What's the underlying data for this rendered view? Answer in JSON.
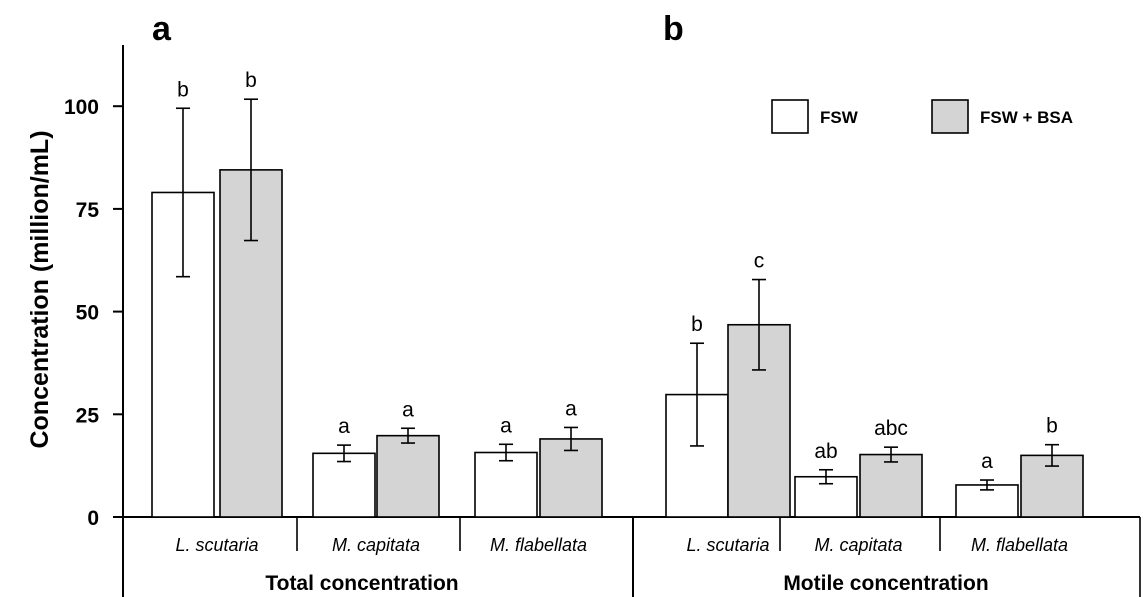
{
  "chart_data": {
    "type": "bar",
    "ylabel": "Concentration (million/mL)",
    "ylim": [
      0,
      110
    ],
    "yticks": [
      0,
      25,
      50,
      75,
      100
    ],
    "legend": {
      "placement": "top-right",
      "entries": [
        {
          "name": "FSW",
          "color": "#ffffff"
        },
        {
          "name": "FSW + BSA",
          "color": "#d4d4d4"
        }
      ]
    },
    "panels": [
      {
        "label": "a",
        "group_title": "Total concentration",
        "categories": [
          "L. scutaria",
          "M. capitata",
          "M. flabellata"
        ],
        "series": [
          {
            "name": "FSW",
            "values": [
              79,
              15.5,
              15.7
            ],
            "errors": [
              20.5,
              2,
              2
            ],
            "letters": [
              "b",
              "a",
              "a"
            ]
          },
          {
            "name": "FSW + BSA",
            "values": [
              84.5,
              19.8,
              19
            ],
            "errors": [
              17.2,
              1.8,
              2.8
            ],
            "letters": [
              "b",
              "a",
              "a"
            ]
          }
        ]
      },
      {
        "label": "b",
        "group_title": "Motile concentration",
        "categories": [
          "L. scutaria",
          "M. capitata",
          "M. flabellata"
        ],
        "series": [
          {
            "name": "FSW",
            "values": [
              29.8,
              9.8,
              7.8
            ],
            "errors": [
              12.5,
              1.7,
              1.2
            ],
            "letters": [
              "b",
              "ab",
              "a"
            ]
          },
          {
            "name": "FSW + BSA",
            "values": [
              46.8,
              15.2,
              15
            ],
            "errors": [
              11,
              1.8,
              2.6
            ],
            "letters": [
              "c",
              "abc",
              "b"
            ]
          }
        ]
      }
    ],
    "colors": {
      "FSW": "#ffffff",
      "FSW + BSA": "#d4d4d4",
      "stroke": "#000000"
    }
  }
}
